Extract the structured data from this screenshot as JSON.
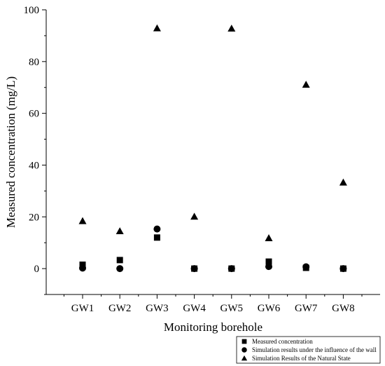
{
  "chart_data": {
    "type": "scatter",
    "title": "",
    "xlabel": "Monitoring borehole",
    "ylabel": "Measured concentration (mg/L)",
    "categories": [
      "GW1",
      "GW2",
      "GW3",
      "GW4",
      "GW5",
      "GW6",
      "GW7",
      "GW8"
    ],
    "ylim": [
      -10,
      100
    ],
    "yticks": [
      0,
      20,
      40,
      60,
      80,
      100
    ],
    "grid": false,
    "legend_position": "bottom-right",
    "series": [
      {
        "name": "Measured concentration",
        "marker": "square",
        "color": "#000000",
        "values": [
          1.5,
          3.3,
          12,
          0,
          0,
          2.7,
          0.3,
          0
        ]
      },
      {
        "name": "Simulation results under the influence of the wall",
        "marker": "circle",
        "color": "#000000",
        "values": [
          0.2,
          0,
          15.3,
          0,
          0,
          0.8,
          0.7,
          0
        ]
      },
      {
        "name": "Simulation Results of the Natural State",
        "marker": "triangle",
        "color": "#000000",
        "values": [
          18.4,
          14.5,
          92.9,
          20.1,
          92.8,
          11.8,
          71.1,
          33.3
        ]
      }
    ]
  }
}
